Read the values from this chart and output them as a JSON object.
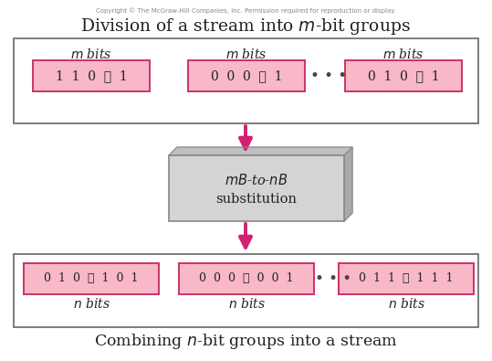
{
  "copyright_text": "Copyright © The McGraw-Hill Companies, Inc. Permission required for reproduction or display.",
  "title": "Division of a stream into $m$-bit groups",
  "bottom_title": "Combining $n$-bit groups into a stream",
  "top_boxes": [
    {
      "label": "$m$ bits",
      "content": "1  1  0  ⋯  1"
    },
    {
      "label": "$m$ bits",
      "content": "0  0  0  ⋯  1"
    },
    {
      "label": "$m$ bits",
      "content": "0  1  0  ⋯  1"
    }
  ],
  "bottom_boxes": [
    {
      "label": "$n$ bits",
      "content": "0  1  0  ⋯  1  0  1"
    },
    {
      "label": "$n$ bits",
      "content": "0  0  0  ⋯  0  0  1"
    },
    {
      "label": "$n$ bits",
      "content": "0  1  1  ⋯  1  1  1"
    }
  ],
  "middle_box_text1": "$mB$-to-$nB$",
  "middle_box_text2": "substitution",
  "outer_box_color": "#ffffff",
  "outer_box_edge_color": "#666666",
  "inner_box_fill": "#f8b8c8",
  "inner_box_edge": "#cc3366",
  "middle_box_fill": "#d4d4d4",
  "middle_box_edge": "#888888",
  "middle_box_side": "#aaaaaa",
  "middle_box_top": "#c0c0c0",
  "arrow_color": "#d42070",
  "dots_color": "#444444",
  "text_color": "#222222",
  "copyright_color": "#888888",
  "bg_color": "#ffffff"
}
